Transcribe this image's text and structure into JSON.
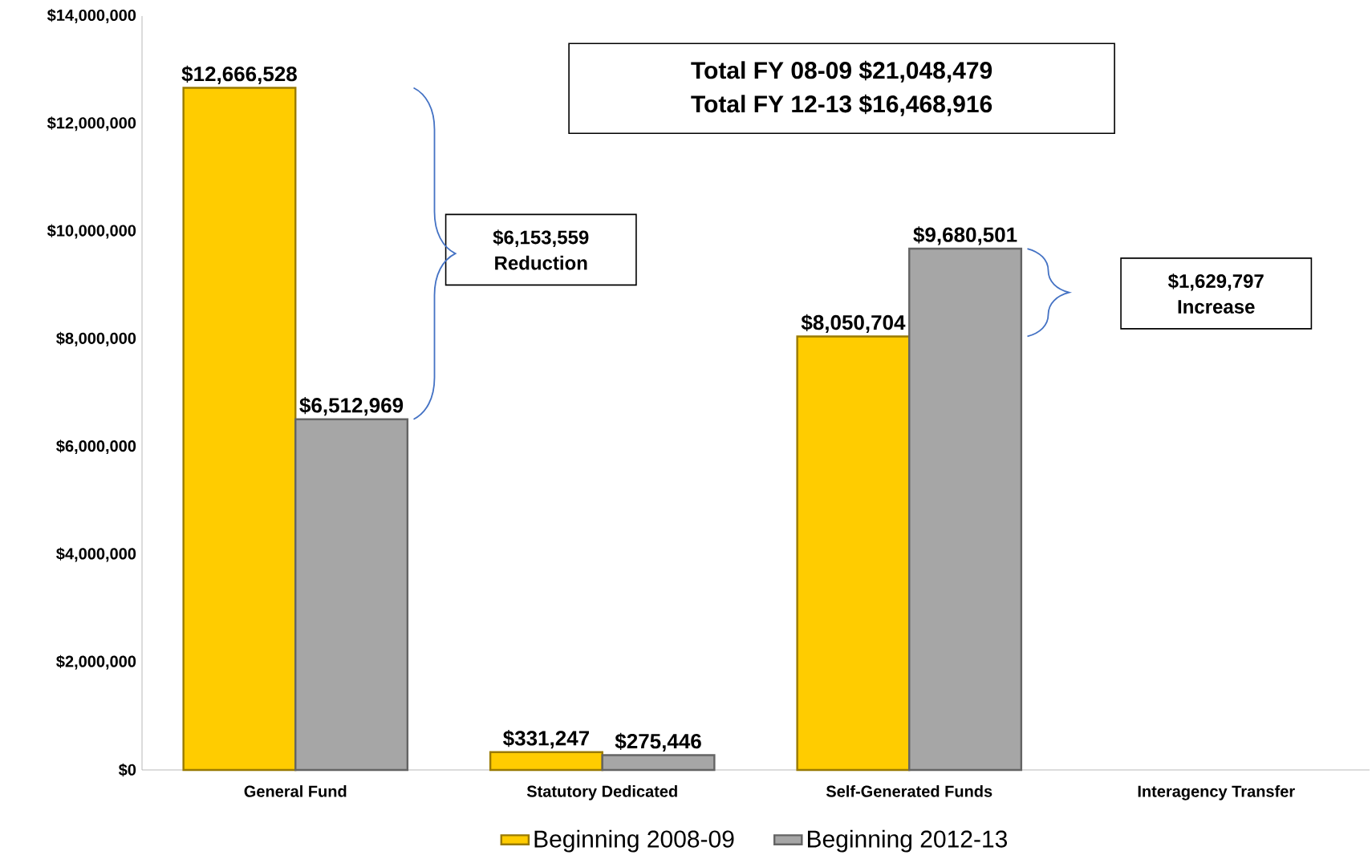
{
  "chart_data": {
    "type": "bar",
    "categories": [
      "General Fund",
      "Statutory Dedicated",
      "Self-Generated Funds",
      "Interagency Transfer"
    ],
    "series": [
      {
        "name": "Beginning 2008-09",
        "color": "#ffcc00",
        "values": [
          12666528,
          331247,
          8050704,
          null
        ],
        "value_labels": [
          "$12,666,528",
          "$331,247",
          "$8,050,704",
          null
        ]
      },
      {
        "name": "Beginning 2012-13",
        "color": "#a6a6a6",
        "values": [
          6512969,
          275446,
          9680501,
          null
        ],
        "value_labels": [
          "$6,512,969",
          "$275,446",
          "$9,680,501",
          null
        ]
      }
    ],
    "ylim": [
      0,
      14000000
    ],
    "yticks": [
      {
        "value": 0,
        "label": "$0"
      },
      {
        "value": 2000000,
        "label": "$2,000,000"
      },
      {
        "value": 4000000,
        "label": "$4,000,000"
      },
      {
        "value": 6000000,
        "label": "$6,000,000"
      },
      {
        "value": 8000000,
        "label": "$8,000,000"
      },
      {
        "value": 10000000,
        "label": "$10,000,000"
      },
      {
        "value": 12000000,
        "label": "$12,000,000"
      },
      {
        "value": 14000000,
        "label": "$14,000,000"
      }
    ],
    "annotations": [
      "Total FY 08-09   $21,048,479",
      "Total FY 12-13   $16,468,916",
      "$6,153,559 Reduction",
      "$1,629,797 Increase"
    ],
    "legend": "bottom",
    "grid": false
  }
}
